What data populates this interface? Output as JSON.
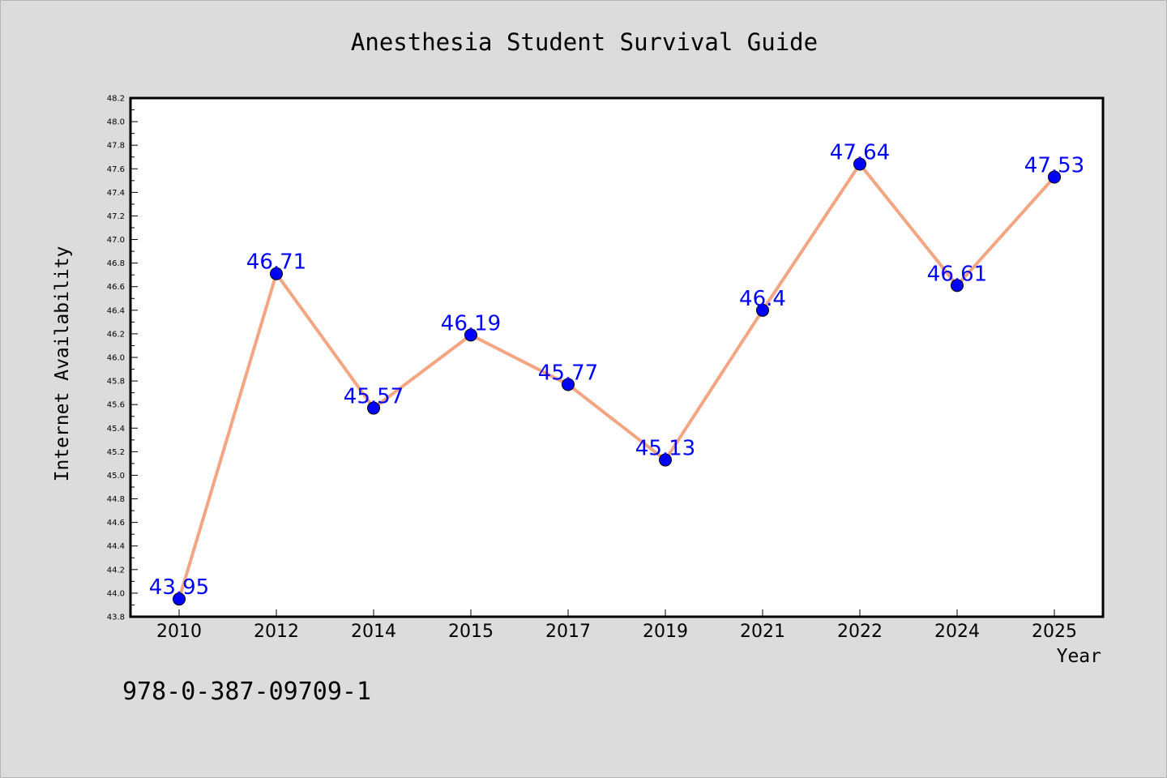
{
  "isbn": "978-0-387-09709-1",
  "chart_data": {
    "type": "line",
    "title": "Anesthesia Student Survival Guide",
    "xlabel": "Year",
    "ylabel": "Internet Availability",
    "categories": [
      "2010",
      "2012",
      "2014",
      "2015",
      "2017",
      "2019",
      "2021",
      "2022",
      "2024",
      "2025"
    ],
    "values": [
      43.95,
      46.71,
      45.57,
      46.19,
      45.77,
      45.13,
      46.4,
      47.64,
      46.61,
      47.53
    ],
    "value_labels": [
      "43.95",
      "46.71",
      "45.57",
      "46.19",
      "45.77",
      "45.13",
      "46.4",
      "47.64",
      "46.61",
      "47.53"
    ],
    "ylim": [
      43.8,
      48.2
    ],
    "yticks": [
      "43.8",
      "44.0",
      "44.2",
      "44.4",
      "44.6",
      "44.8",
      "45.0",
      "45.2",
      "45.4",
      "45.6",
      "45.8",
      "46.0",
      "46.2",
      "46.4",
      "46.6",
      "46.8",
      "47.0",
      "47.2",
      "47.4",
      "47.6",
      "47.8",
      "48.0",
      "48.2"
    ],
    "grid": false,
    "legend": "none",
    "colors": {
      "line": "#f4a582",
      "marker": "#0000ff",
      "label": "#0000ff",
      "plot_background": "#ffffff",
      "page_background": "#dcdcdc"
    }
  }
}
